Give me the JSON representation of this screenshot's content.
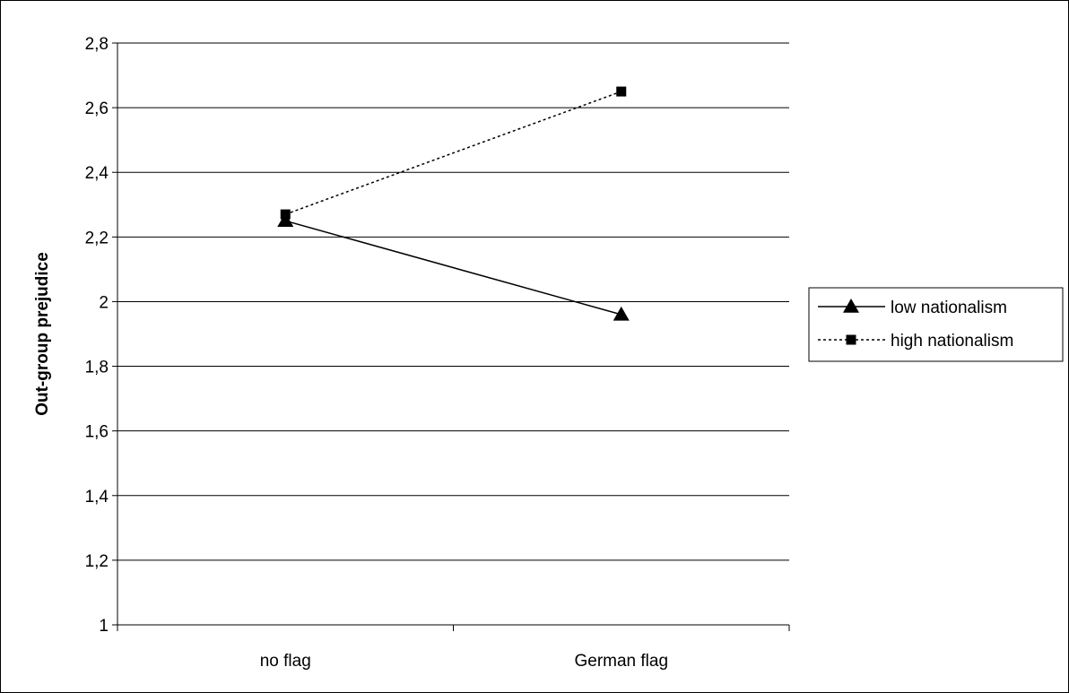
{
  "chart_data": {
    "type": "line",
    "categories": [
      "no flag",
      "German flag"
    ],
    "ylabel": "Out-group prejudice",
    "ylim": [
      1,
      2.8
    ],
    "yticks": [
      "1",
      "1,2",
      "1,4",
      "1,6",
      "1,8",
      "2",
      "2,2",
      "2,4",
      "2,6",
      "2,8"
    ],
    "grid": true,
    "legend_position": "right",
    "series": [
      {
        "name": "low nationalism",
        "values": [
          2.25,
          1.96
        ],
        "marker": "triangle",
        "line": "solid",
        "color": "#000000"
      },
      {
        "name": "high nationalism",
        "values": [
          2.27,
          2.65
        ],
        "marker": "square",
        "line": "dotted",
        "color": "#000000"
      }
    ]
  }
}
